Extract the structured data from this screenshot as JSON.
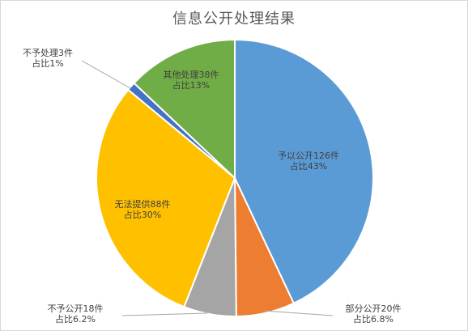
{
  "chart_data": {
    "type": "pie",
    "title": "信息公开处理结果",
    "slices": [
      {
        "name": "予以公开",
        "count": 126,
        "percent": 43,
        "label_line1": "予以公开126件",
        "label_line2": "占比43%",
        "color": "#5b9bd5"
      },
      {
        "name": "部分公开",
        "count": 20,
        "percent": 6.8,
        "label_line1": "部分公开20件",
        "label_line2": "占比6.8%",
        "color": "#ed7d31"
      },
      {
        "name": "不予公开",
        "count": 18,
        "percent": 6.2,
        "label_line1": "不予公开18件",
        "label_line2": "占比6.2%",
        "color": "#a5a5a5"
      },
      {
        "name": "无法提供",
        "count": 88,
        "percent": 30,
        "label_line1": "无法提供88件",
        "label_line2": "占比30%",
        "color": "#ffc000"
      },
      {
        "name": "不予处理",
        "count": 3,
        "percent": 1,
        "label_line1": "不予处理3件",
        "label_line2": "占比1%",
        "color": "#4472c4"
      },
      {
        "name": "其他处理",
        "count": 38,
        "percent": 13,
        "label_line1": "其他处理38件",
        "label_line2": "占比13%",
        "color": "#70ad47"
      }
    ]
  }
}
